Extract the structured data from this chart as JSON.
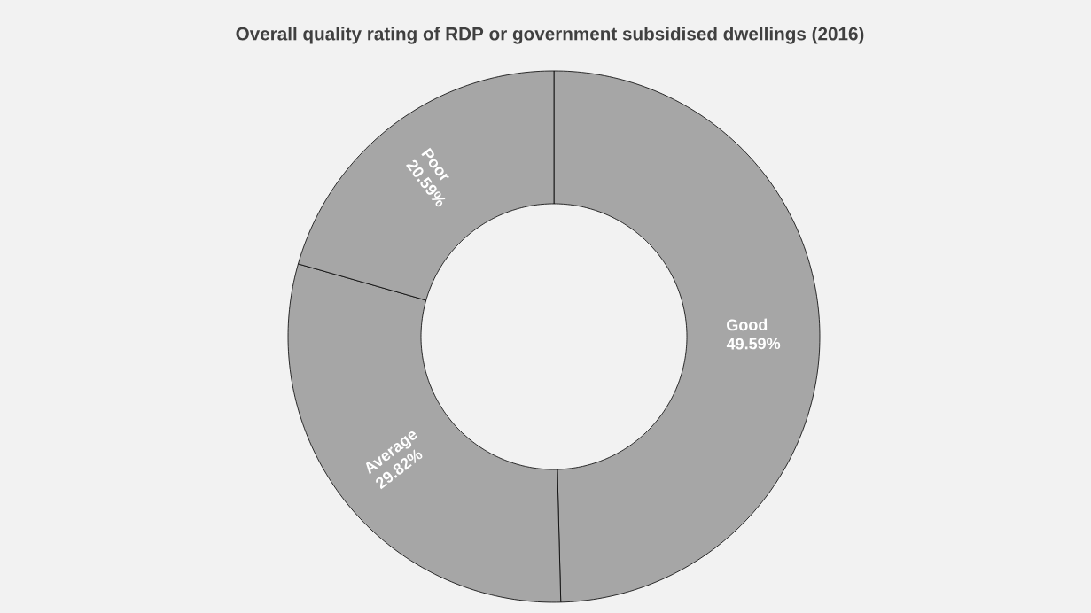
{
  "chart_data": {
    "type": "donut",
    "title": "Overall quality rating of RDP or government subsidised dwellings (2016)",
    "categories": [
      "Good",
      "Average",
      "Poor"
    ],
    "values": [
      49.59,
      29.82,
      20.59
    ],
    "colors": [
      "#a6a6a6",
      "#a6a6a6",
      "#a6a6a6"
    ],
    "value_labels": [
      "49.59%",
      "29.82%",
      "20.59%"
    ]
  }
}
